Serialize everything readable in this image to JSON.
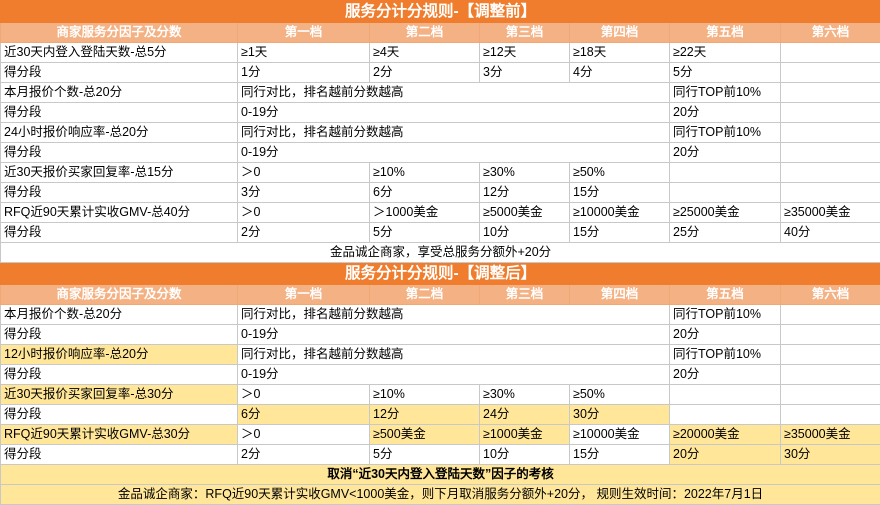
{
  "before": {
    "title": "服务分计分规则-【调整前】",
    "headers": [
      "商家服务分因子及分数",
      "第一档",
      "第二档",
      "第三档",
      "第四档",
      "第五档",
      "第六档"
    ],
    "rows": [
      [
        "近30天内登入登陆天数-总5分",
        "≥1天",
        "≥4天",
        "≥12天",
        "≥18天",
        "≥22天",
        ""
      ],
      [
        "得分段",
        "1分",
        "2分",
        "3分",
        "4分",
        "5分",
        ""
      ],
      [
        "本月报价个数-总20分",
        "同行对比，排名越前分数越高",
        null,
        null,
        null,
        "同行TOP前10%",
        ""
      ],
      [
        "得分段",
        "0-19分",
        null,
        null,
        null,
        "20分",
        ""
      ],
      [
        "24小时报价响应率-总20分",
        "同行对比，排名越前分数越高",
        null,
        null,
        null,
        "同行TOP前10%",
        ""
      ],
      [
        "得分段",
        "0-19分",
        null,
        null,
        null,
        "20分",
        ""
      ],
      [
        "近30天报价买家回复率-总15分",
        "＞0",
        "≥10%",
        "≥30%",
        "≥50%",
        "",
        ""
      ],
      [
        "得分段",
        "3分",
        "6分",
        "12分",
        "15分",
        "",
        ""
      ],
      [
        "RFQ近90天累计实收GMV-总40分",
        "＞0",
        "＞1000美金",
        "≥5000美金",
        "≥10000美金",
        "≥25000美金",
        "≥35000美金"
      ],
      [
        "得分段",
        "2分",
        "5分",
        "10分",
        "15分",
        "25分",
        "40分"
      ]
    ],
    "note": "金品诚企商家，享受总服务分额外+20分"
  },
  "after": {
    "title": "服务分计分规则-【调整后】",
    "headers": [
      "商家服务分因子及分数",
      "第一档",
      "第二档",
      "第三档",
      "第四档",
      "第五档",
      "第六档"
    ],
    "rows": [
      [
        "本月报价个数-总20分",
        "同行对比，排名越前分数越高",
        null,
        null,
        null,
        "同行TOP前10%",
        ""
      ],
      [
        "得分段",
        "0-19分",
        null,
        null,
        null,
        "20分",
        ""
      ],
      [
        "12小时报价响应率-总20分",
        "同行对比，排名越前分数越高",
        null,
        null,
        null,
        "同行TOP前10%",
        ""
      ],
      [
        "得分段",
        "0-19分",
        null,
        null,
        null,
        "20分",
        ""
      ],
      [
        "近30天报价买家回复率-总30分",
        "＞0",
        "≥10%",
        "≥30%",
        "≥50%",
        "",
        ""
      ],
      [
        "得分段",
        "6分",
        "12分",
        "24分",
        "30分",
        "",
        ""
      ],
      [
        "RFQ近90天累计实收GMV-总30分",
        "＞0",
        "≥500美金",
        "≥1000美金",
        "≥10000美金",
        "≥20000美金",
        "≥35000美金"
      ],
      [
        "得分段",
        "2分",
        "5分",
        "10分",
        "15分",
        "20分",
        "30分"
      ]
    ],
    "highlights": [
      [
        2,
        0
      ],
      [
        4,
        0
      ],
      [
        5,
        1
      ],
      [
        5,
        2
      ],
      [
        5,
        3
      ],
      [
        5,
        4
      ],
      [
        6,
        0
      ],
      [
        6,
        2
      ],
      [
        6,
        3
      ],
      [
        6,
        5
      ],
      [
        6,
        6
      ],
      [
        7,
        5
      ],
      [
        7,
        6
      ]
    ],
    "remark1": "取消“近30天内登入登陆天数”因子的考核",
    "remark2": "金品诚企商家：RFQ近90天累计实收GMV<1000美金，则下月取消服务分额外+20分， 规则生效时间：2022年7月1日"
  }
}
